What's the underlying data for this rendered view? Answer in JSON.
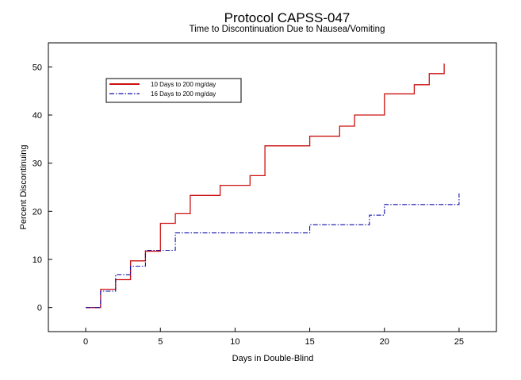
{
  "chart_data": {
    "type": "line",
    "step": true,
    "title": "Protocol CAPSS-047",
    "subtitle": "Time to Discontinuation Due to Nausea/Vomiting",
    "xlabel": "Days in Double-Blind",
    "ylabel": "Percent Discontinuing",
    "xlim": [
      -2.5,
      27.5
    ],
    "ylim": [
      -5,
      55
    ],
    "xticks": [
      0,
      5,
      10,
      15,
      20,
      25
    ],
    "yticks": [
      0,
      10,
      20,
      30,
      40,
      50
    ],
    "grid": false,
    "legend_position": "top-left",
    "series": [
      {
        "name": "10 Days to 200 mg/day",
        "color": "#cc1111",
        "dash": "solid",
        "x": [
          0,
          1,
          2,
          3,
          4,
          5,
          6,
          7,
          9,
          11,
          12,
          15,
          17,
          18,
          20,
          22,
          23,
          24
        ],
        "y": [
          0,
          3.8,
          5.8,
          9.7,
          11.7,
          17.5,
          19.5,
          23.3,
          25.4,
          27.4,
          33.6,
          35.6,
          37.7,
          40.0,
          44.4,
          46.3,
          48.6,
          50.7
        ]
      },
      {
        "name": "16 Days to 200 mg/day",
        "color": "#1111aa",
        "dash": "dashdot",
        "x": [
          0,
          1,
          2,
          3,
          4,
          6,
          15,
          19,
          20,
          25
        ],
        "y": [
          0,
          3.4,
          6.8,
          8.6,
          11.9,
          15.5,
          17.2,
          19.2,
          21.4,
          23.7
        ]
      }
    ]
  }
}
